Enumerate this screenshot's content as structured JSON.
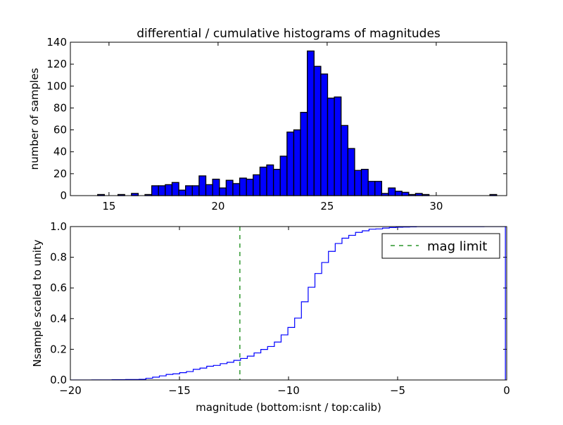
{
  "chart_data": [
    {
      "type": "bar",
      "title": "differential / cumulative histograms of magnitudes",
      "xlabel": "",
      "ylabel": "number of samples",
      "xlim": [
        13.23,
        33.23
      ],
      "ylim": [
        0,
        140
      ],
      "xticks": [
        "15",
        "20",
        "25",
        "30"
      ],
      "xtick_values": [
        15,
        20,
        25,
        30
      ],
      "yticks": [
        "0",
        "20",
        "40",
        "60",
        "80",
        "100",
        "120",
        "140"
      ],
      "ytick_values": [
        0,
        20,
        40,
        60,
        80,
        100,
        120,
        140
      ],
      "bin_start": 14.48,
      "bin_width": 0.31,
      "counts": [
        1,
        0,
        0,
        1,
        0,
        2,
        0,
        1,
        9,
        9,
        10,
        12,
        5,
        9,
        9,
        18,
        10,
        15,
        7,
        14,
        11,
        16,
        15,
        19,
        26,
        28,
        24,
        36,
        58,
        60,
        76,
        132,
        118,
        111,
        89,
        90,
        64,
        43,
        23,
        24,
        13,
        13,
        2,
        7,
        4,
        3,
        1,
        2,
        1,
        0,
        0,
        0,
        0,
        0,
        0,
        0,
        0,
        0,
        1
      ],
      "color": "#0000ff"
    },
    {
      "type": "line",
      "subtype": "cumulative step histogram",
      "xlabel": "magnitude (bottom:isnt / top:calib)",
      "ylabel": "Nsample scaled to unity",
      "xlim": [
        -20,
        0
      ],
      "ylim": [
        0,
        1
      ],
      "xticks": [
        "−20",
        "−15",
        "−10",
        "−5",
        "0"
      ],
      "xtick_values": [
        -20,
        -15,
        -10,
        -5,
        0
      ],
      "yticks": [
        "0.0",
        "0.2",
        "0.4",
        "0.6",
        "0.8",
        "1.0"
      ],
      "ytick_values": [
        0,
        0.2,
        0.4,
        0.6,
        0.8,
        1.0
      ],
      "isnt_offset": -33.5,
      "line_color": "#0000ff",
      "mag_limit": -12.23,
      "mag_limit_color": "#008000",
      "legend": {
        "label": "mag limit",
        "placement": "top-right"
      }
    }
  ]
}
